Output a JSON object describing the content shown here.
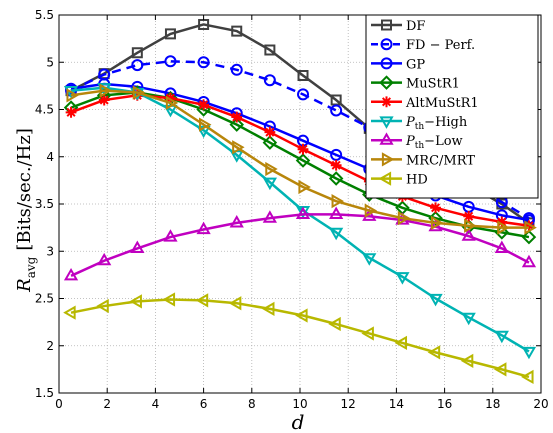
{
  "chart_data": {
    "type": "line",
    "title": "",
    "xlabel": "d",
    "ylabel_main": "R",
    "ylabel_sub": "avg",
    "ylabel_unit": "[Bits/sec./Hz]",
    "xlim": [
      0,
      20
    ],
    "ylim": [
      1.5,
      5.5
    ],
    "xticks": [
      0,
      2,
      4,
      6,
      8,
      10,
      12,
      14,
      16,
      18,
      20
    ],
    "yticks": [
      1.5,
      2,
      2.5,
      3,
      3.5,
      4,
      4.5,
      5,
      5.5
    ],
    "grid": true,
    "legend_position": "top-right",
    "x": [
      0.5,
      1.875,
      3.25,
      4.625,
      6.0,
      7.375,
      8.75,
      10.125,
      11.5,
      12.875,
      14.25,
      15.625,
      17.0,
      18.375,
      19.5
    ],
    "series": [
      {
        "name": "DF",
        "color": "#404040",
        "marker": "square",
        "dash": "solid",
        "values": [
          4.7,
          4.88,
          5.1,
          5.3,
          5.4,
          5.33,
          5.13,
          4.86,
          4.6,
          4.3,
          4.1,
          3.9,
          3.7,
          3.5,
          3.3
        ]
      },
      {
        "name": "FD − Perf.",
        "color": "#0000ff",
        "marker": "circle",
        "dash": "dashed",
        "values": [
          4.7,
          4.87,
          4.97,
          5.01,
          5.0,
          4.92,
          4.81,
          4.66,
          4.49,
          4.31,
          4.12,
          3.92,
          3.72,
          3.52,
          3.35
        ]
      },
      {
        "name": "GP",
        "color": "#0000ff",
        "marker": "circle",
        "dash": "solid",
        "values": [
          4.72,
          4.77,
          4.74,
          4.67,
          4.58,
          4.46,
          4.32,
          4.17,
          4.02,
          3.87,
          3.72,
          3.59,
          3.47,
          3.38,
          3.33
        ]
      },
      {
        "name": "MuStR1",
        "color": "#008000",
        "marker": "diamond",
        "dash": "solid",
        "values": [
          4.52,
          4.65,
          4.68,
          4.62,
          4.5,
          4.34,
          4.15,
          3.96,
          3.77,
          3.6,
          3.46,
          3.35,
          3.26,
          3.2,
          3.15
        ]
      },
      {
        "name": "AltMuStR1",
        "color": "#ff0000",
        "marker": "star",
        "dash": "solid",
        "values": [
          4.47,
          4.6,
          4.65,
          4.62,
          4.55,
          4.42,
          4.26,
          4.08,
          3.91,
          3.74,
          3.58,
          3.46,
          3.37,
          3.31,
          3.27
        ]
      },
      {
        "name": "P_th − High",
        "label_main": "P",
        "label_sub": "th",
        "label_rest": "−High",
        "color": "#00b3b3",
        "marker": "triangle-down",
        "dash": "solid",
        "values": [
          4.7,
          4.73,
          4.68,
          4.5,
          4.28,
          4.02,
          3.73,
          3.43,
          3.2,
          2.93,
          2.73,
          2.5,
          2.3,
          2.11,
          1.94
        ]
      },
      {
        "name": "P_th − Low",
        "label_main": "P",
        "label_sub": "th",
        "label_rest": "−Low",
        "color": "#c000c0",
        "marker": "triangle-up",
        "dash": "solid",
        "values": [
          2.74,
          2.9,
          3.03,
          3.15,
          3.23,
          3.3,
          3.35,
          3.39,
          3.39,
          3.37,
          3.33,
          3.26,
          3.16,
          3.03,
          2.88
        ]
      },
      {
        "name": "MRC/MRT",
        "color": "#b8860b",
        "marker": "triangle-right",
        "dash": "solid",
        "values": [
          4.65,
          4.7,
          4.68,
          4.57,
          4.34,
          4.1,
          3.87,
          3.68,
          3.53,
          3.43,
          3.35,
          3.3,
          3.27,
          3.25,
          3.25
        ]
      },
      {
        "name": "HD",
        "color": "#b8b800",
        "marker": "triangle-left",
        "dash": "solid",
        "values": [
          2.35,
          2.42,
          2.47,
          2.49,
          2.48,
          2.45,
          2.39,
          2.32,
          2.23,
          2.13,
          2.03,
          1.93,
          1.84,
          1.75,
          1.67
        ]
      }
    ]
  }
}
